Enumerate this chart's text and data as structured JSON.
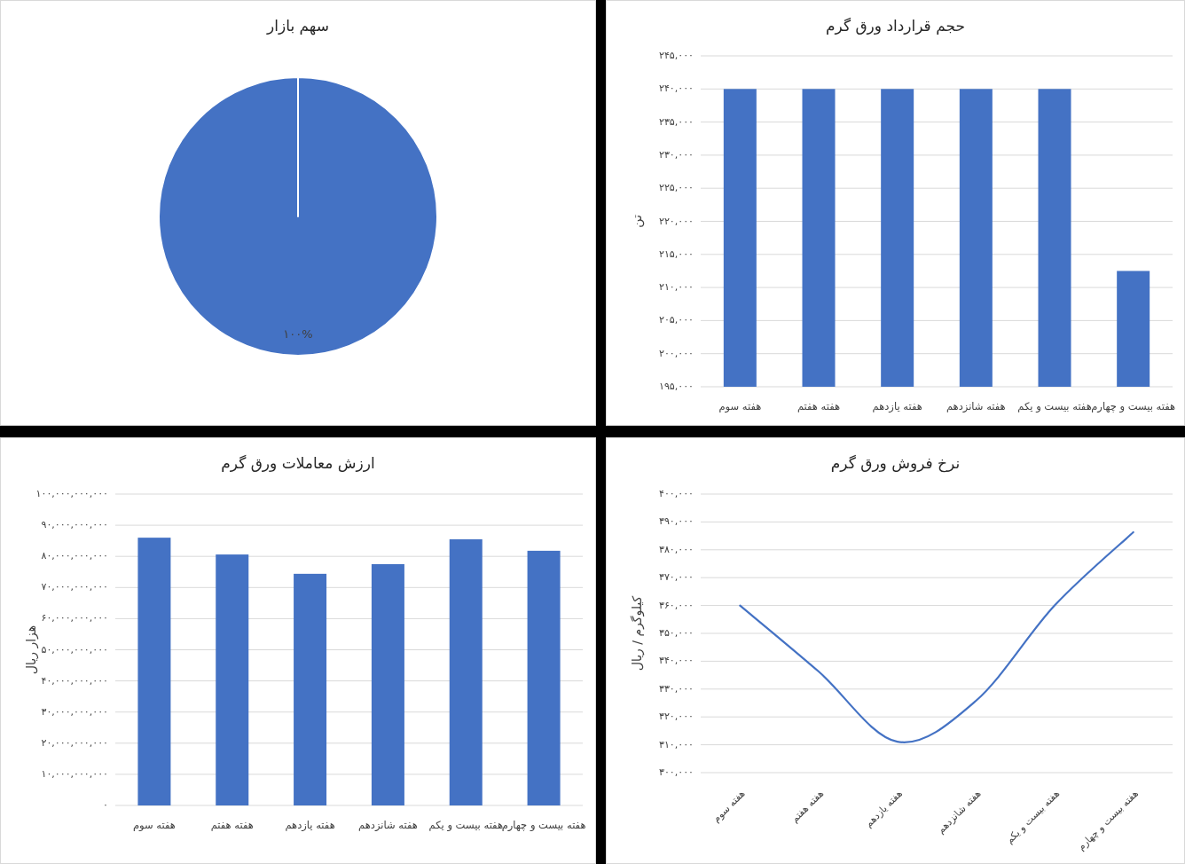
{
  "chart_data": [
    {
      "type": "pie",
      "title": "سهم بازار",
      "categories": [
        null
      ],
      "values": [
        100
      ],
      "colors": [
        "#4472c4"
      ],
      "value_labels": [
        "۱۰۰%"
      ]
    },
    {
      "type": "bar",
      "title": "حجم قرارداد ورق گرم",
      "ylabel": "تن",
      "categories": [
        "هفته سوم",
        "هفته هفتم",
        "هفته یازدهم",
        "هفته شانزدهم",
        "هفته بیست و یکم",
        "هفته بیست و چهارم"
      ],
      "values": [
        240000,
        240000,
        240000,
        240000,
        240000,
        212500
      ],
      "color": "#4472c4",
      "ylim": [
        195000,
        245000
      ],
      "yticks": [
        {
          "value": 195000,
          "label": "۱۹۵,۰۰۰"
        },
        {
          "value": 200000,
          "label": "۲۰۰,۰۰۰"
        },
        {
          "value": 205000,
          "label": "۲۰۵,۰۰۰"
        },
        {
          "value": 210000,
          "label": "۲۱۰,۰۰۰"
        },
        {
          "value": 215000,
          "label": "۲۱۵,۰۰۰"
        },
        {
          "value": 220000,
          "label": "۲۲۰,۰۰۰"
        },
        {
          "value": 225000,
          "label": "۲۲۵,۰۰۰"
        },
        {
          "value": 230000,
          "label": "۲۳۰,۰۰۰"
        },
        {
          "value": 235000,
          "label": "۲۳۵,۰۰۰"
        },
        {
          "value": 240000,
          "label": "۲۴۰,۰۰۰"
        },
        {
          "value": 245000,
          "label": "۲۴۵,۰۰۰"
        }
      ],
      "grid": "y"
    },
    {
      "type": "bar",
      "title": "ارزش معاملات ورق گرم",
      "ylabel": "هزار ریال",
      "categories": [
        "هفته سوم",
        "هفته هفتم",
        "هفته یازدهم",
        "هفته شانزدهم",
        "هفته بیست و یکم",
        "هفته بیست و چهارم"
      ],
      "values": [
        86000000000,
        80600000000,
        74400000000,
        77500000000,
        85500000000,
        81800000000
      ],
      "color": "#4472c4",
      "ylim": [
        0,
        100000000000
      ],
      "yticks": [
        {
          "value": 0,
          "label": "۰"
        },
        {
          "value": 10000000000,
          "label": "۱۰,۰۰۰,۰۰۰,۰۰۰"
        },
        {
          "value": 20000000000,
          "label": "۲۰,۰۰۰,۰۰۰,۰۰۰"
        },
        {
          "value": 30000000000,
          "label": "۳۰,۰۰۰,۰۰۰,۰۰۰"
        },
        {
          "value": 40000000000,
          "label": "۴۰,۰۰۰,۰۰۰,۰۰۰"
        },
        {
          "value": 50000000000,
          "label": "۵۰,۰۰۰,۰۰۰,۰۰۰"
        },
        {
          "value": 60000000000,
          "label": "۶۰,۰۰۰,۰۰۰,۰۰۰"
        },
        {
          "value": 70000000000,
          "label": "۷۰,۰۰۰,۰۰۰,۰۰۰"
        },
        {
          "value": 80000000000,
          "label": "۸۰,۰۰۰,۰۰۰,۰۰۰"
        },
        {
          "value": 90000000000,
          "label": "۹۰,۰۰۰,۰۰۰,۰۰۰"
        },
        {
          "value": 100000000000,
          "label": "۱۰۰,۰۰۰,۰۰۰,۰۰۰"
        }
      ],
      "grid": "y"
    },
    {
      "type": "line",
      "title": "نرخ فروش ورق گرم",
      "ylabel": "کیلوگرم / ریال",
      "categories": [
        "هفته سوم",
        "هفته هفتم",
        "هفته یازدهم",
        "هفته شانزدهم",
        "هفته بیست و یکم",
        "هفته بیست و چهارم"
      ],
      "values": [
        360000,
        336300,
        311100,
        325800,
        360000,
        386300
      ],
      "color": "#4472c4",
      "ylim": [
        300000,
        400000
      ],
      "yticks": [
        {
          "value": 300000,
          "label": "۳۰۰,۰۰۰"
        },
        {
          "value": 310000,
          "label": "۳۱۰,۰۰۰"
        },
        {
          "value": 320000,
          "label": "۳۲۰,۰۰۰"
        },
        {
          "value": 330000,
          "label": "۳۳۰,۰۰۰"
        },
        {
          "value": 340000,
          "label": "۳۴۰,۰۰۰"
        },
        {
          "value": 350000,
          "label": "۳۵۰,۰۰۰"
        },
        {
          "value": 360000,
          "label": "۳۶۰,۰۰۰"
        },
        {
          "value": 370000,
          "label": "۳۷۰,۰۰۰"
        },
        {
          "value": 380000,
          "label": "۳۸۰,۰۰۰"
        },
        {
          "value": 390000,
          "label": "۳۹۰,۰۰۰"
        },
        {
          "value": 400000,
          "label": "۴۰۰,۰۰۰"
        }
      ],
      "grid": "y"
    }
  ]
}
